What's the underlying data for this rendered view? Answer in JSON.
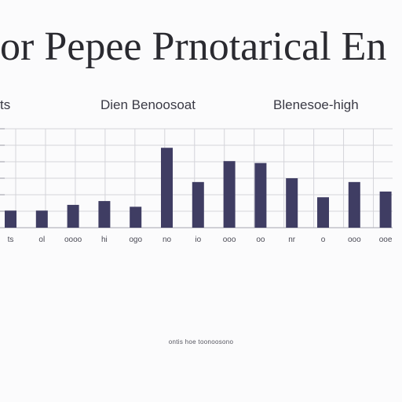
{
  "header": {
    "title": "or Pepee Prnotarical En",
    "subtitles": [
      "ts",
      "Dien Benoosoat",
      "Blenesoe-high"
    ]
  },
  "colors": {
    "bar": "#3f3d63",
    "grid": "#d4d4da",
    "background": "#fbfbfc"
  },
  "chart_data": {
    "type": "bar",
    "title": "or Pepee Prnotarical En",
    "categories": [
      "ts",
      "ol",
      "oooo",
      "hi",
      "ogo",
      "no",
      "io",
      "ooo",
      "oo",
      "nr",
      "o",
      "ooo",
      "ooe"
    ],
    "values": [
      4.5,
      4.5,
      6.0,
      7.0,
      5.5,
      21.0,
      12.0,
      17.5,
      17.0,
      13.0,
      8.0,
      12.0,
      9.5
    ],
    "ylim": [
      0,
      26
    ],
    "grid": true,
    "legend": "none",
    "footnote": "ontis hoe toonoosono"
  }
}
